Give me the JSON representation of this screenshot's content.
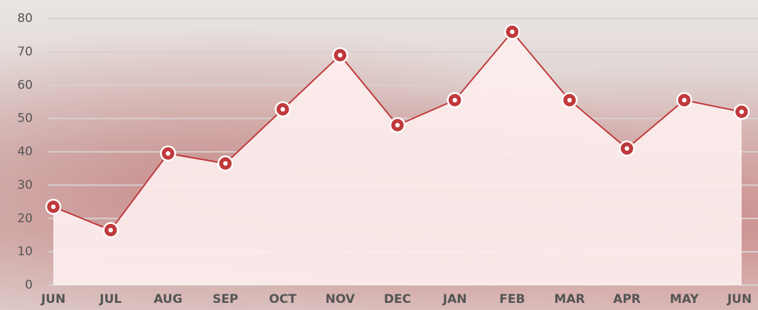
{
  "chart_data": {
    "type": "line",
    "categories": [
      "JUN",
      "JUL",
      "AUG",
      "SEP",
      "OCT",
      "NOV",
      "DEC",
      "JAN",
      "FEB",
      "MAR",
      "APR",
      "MAY",
      "JUN"
    ],
    "values": [
      23.5,
      16.5,
      39.5,
      36.5,
      52.75,
      69,
      48,
      55.5,
      76,
      55.5,
      41,
      55.5,
      52
    ],
    "color": "#c0393b",
    "ylim": [
      0,
      80
    ],
    "yticks": [
      0,
      10,
      20,
      30,
      40,
      50,
      60,
      70,
      80
    ],
    "grid": true
  }
}
